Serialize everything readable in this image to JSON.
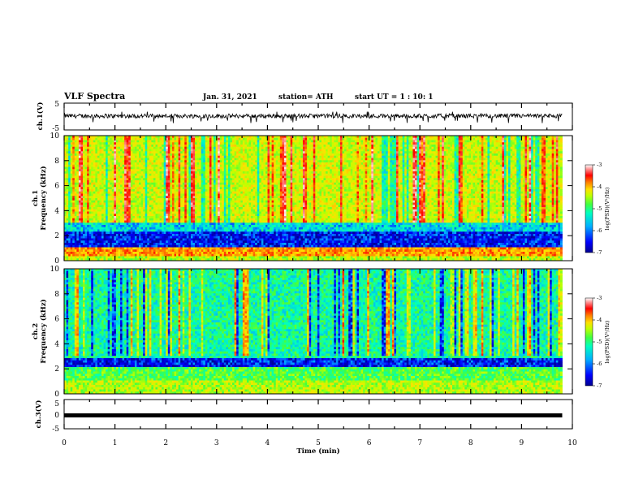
{
  "header": {
    "title": "VLF Spectra",
    "date": "Jan. 31, 2021",
    "station": "station= ATH",
    "start": "start  UT =  1 : 10: 1"
  },
  "chart_data": [
    {
      "type": "line",
      "panel": "ch1-waveform",
      "ylabel": "ch.1(V)",
      "ylim": [
        -5,
        5
      ],
      "yticks": [
        "5",
        "-5"
      ],
      "xlim": [
        0,
        10
      ],
      "data_extent_min": 9.8,
      "baseline_v": 0.2,
      "noise_amp_v": 0.8,
      "spike_v": -2.5,
      "color": "#000000"
    },
    {
      "type": "heatmap",
      "panel": "ch1-spectrogram",
      "ylabel": "Frequency (kHz)",
      "ylabel_prefix": "ch.1",
      "ylim": [
        0,
        10
      ],
      "yticks": [
        "0",
        "2",
        "4",
        "6",
        "8",
        "10"
      ],
      "xlim": [
        0,
        10
      ],
      "data_extent_min": 9.8,
      "colorbar": {
        "label": "log(PSD)(V²/Hz)",
        "ticks": [
          "-3",
          "-4",
          "-5",
          "-6",
          "-7"
        ],
        "range": [
          -7,
          -3
        ]
      },
      "bands": [
        {
          "from_khz": 0.0,
          "to_khz": 0.4,
          "log_psd": -5.0
        },
        {
          "from_khz": 0.4,
          "to_khz": 1.0,
          "log_psd": -4.3
        },
        {
          "from_khz": 1.0,
          "to_khz": 2.4,
          "log_psd": -6.6
        },
        {
          "from_khz": 2.4,
          "to_khz": 3.0,
          "log_psd": -6.0
        },
        {
          "from_khz": 3.0,
          "to_khz": 10.0,
          "log_psd": -4.9
        }
      ]
    },
    {
      "type": "heatmap",
      "panel": "ch2-spectrogram",
      "ylabel": "Frequency (kHz)",
      "ylabel_prefix": "ch.2",
      "ylim": [
        0,
        10
      ],
      "yticks": [
        "0",
        "2",
        "4",
        "6",
        "8",
        "10"
      ],
      "xlim": [
        0,
        10
      ],
      "data_extent_min": 9.8,
      "colorbar": {
        "label": "log(PSD)(V²/Hz)",
        "ticks": [
          "-3",
          "-4",
          "-5",
          "-6",
          "-7"
        ],
        "range": [
          -7,
          -3
        ]
      },
      "bands": [
        {
          "from_khz": 0.0,
          "to_khz": 1.0,
          "log_psd": -5.0
        },
        {
          "from_khz": 1.0,
          "to_khz": 2.2,
          "log_psd": -5.4
        },
        {
          "from_khz": 2.2,
          "to_khz": 2.8,
          "log_psd": -6.6
        },
        {
          "from_khz": 2.8,
          "to_khz": 10.0,
          "log_psd": -5.7
        }
      ]
    },
    {
      "type": "line",
      "panel": "ch3-waveform",
      "ylabel": "ch.3(V)",
      "ylim": [
        -5,
        5
      ],
      "yticks": [
        "5",
        "0",
        "-5"
      ],
      "xlim": [
        0,
        10
      ],
      "data_extent_min": 9.8,
      "baseline_v": 0.0,
      "color": "#000000"
    }
  ],
  "xaxis": {
    "label": "Time  (min)",
    "ticks": [
      "0",
      "1",
      "2",
      "3",
      "4",
      "5",
      "6",
      "7",
      "8",
      "9",
      "10"
    ]
  },
  "colors": {
    "colormap": [
      "#00008f",
      "#0000ff",
      "#00b0ff",
      "#00ffc0",
      "#40ff40",
      "#c0ff00",
      "#ffe000",
      "#ff8000",
      "#ff0000",
      "#ff9090",
      "#ffffff"
    ]
  }
}
